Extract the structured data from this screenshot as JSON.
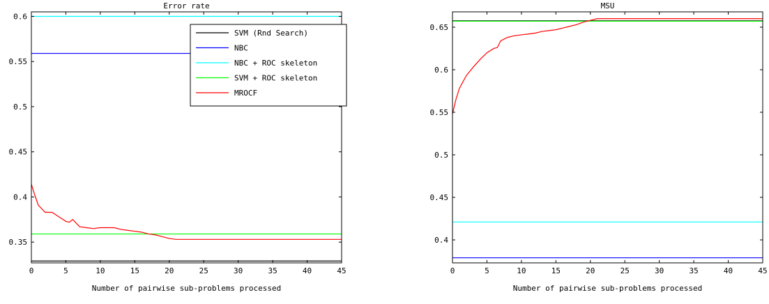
{
  "chart_data": [
    {
      "type": "line",
      "title": "Error rate",
      "xlabel": "Number of pairwise sub-problems processed",
      "ylabel": "",
      "xlim": [
        0,
        45
      ],
      "ylim": [
        0.327,
        0.605
      ],
      "xticks": [
        0,
        5,
        10,
        15,
        20,
        25,
        30,
        35,
        40,
        45
      ],
      "yticks": [
        0.35,
        0.4,
        0.45,
        0.5,
        0.55,
        0.6
      ],
      "ytick_labels": [
        "0.35",
        "0.4",
        "0.45",
        "0.5",
        "0.55",
        "0.6"
      ],
      "grid": false,
      "legend_position": "top-right",
      "series": [
        {
          "name": "SVM (Rnd Search)",
          "color": "#000000",
          "x": [
            0,
            45
          ],
          "y": [
            0.329,
            0.329
          ]
        },
        {
          "name": "NBC",
          "color": "#0000ff",
          "x": [
            0,
            45
          ],
          "y": [
            0.559,
            0.559
          ]
        },
        {
          "name": "NBC + ROC skeleton",
          "color": "#00ffff",
          "x": [
            0,
            45
          ],
          "y": [
            0.6,
            0.6
          ]
        },
        {
          "name": "SVM + ROC skeleton",
          "color": "#00ff00",
          "x": [
            0,
            45
          ],
          "y": [
            0.359,
            0.359
          ]
        },
        {
          "name": "MROCF",
          "color": "#ff0000",
          "x": [
            0,
            0.5,
            1,
            2,
            3,
            4,
            5,
            5.5,
            6,
            7,
            8,
            9,
            10,
            11,
            12,
            13,
            14,
            15,
            16,
            17,
            18,
            19,
            20,
            21,
            25,
            30,
            35,
            40,
            45
          ],
          "y": [
            0.414,
            0.402,
            0.391,
            0.383,
            0.383,
            0.378,
            0.373,
            0.372,
            0.375,
            0.367,
            0.366,
            0.365,
            0.366,
            0.366,
            0.366,
            0.364,
            0.363,
            0.362,
            0.361,
            0.359,
            0.358,
            0.356,
            0.354,
            0.353,
            0.353,
            0.353,
            0.353,
            0.353,
            0.353
          ]
        }
      ]
    },
    {
      "type": "line",
      "title": "MSU",
      "xlabel": "Number of pairwise sub-problems processed",
      "ylabel": "",
      "xlim": [
        0,
        45
      ],
      "ylim": [
        0.373,
        0.668
      ],
      "xticks": [
        0,
        5,
        10,
        15,
        20,
        25,
        30,
        35,
        40,
        45
      ],
      "yticks": [
        0.4,
        0.45,
        0.5,
        0.55,
        0.6,
        0.65
      ],
      "ytick_labels": [
        "0.4",
        "0.45",
        "0.5",
        "0.55",
        "0.6",
        "0.65"
      ],
      "grid": false,
      "series": [
        {
          "name": "SVM (Rnd Search)",
          "color": "#000000",
          "x": [
            0,
            45
          ],
          "y": [
            0.6575,
            0.6575
          ]
        },
        {
          "name": "NBC",
          "color": "#0000ff",
          "x": [
            0,
            45
          ],
          "y": [
            0.379,
            0.379
          ]
        },
        {
          "name": "NBC + ROC skeleton",
          "color": "#00ffff",
          "x": [
            0,
            45
          ],
          "y": [
            0.421,
            0.421
          ]
        },
        {
          "name": "SVM + ROC skeleton",
          "color": "#00ff00",
          "x": [
            0,
            45
          ],
          "y": [
            0.657,
            0.657
          ]
        },
        {
          "name": "MROCF",
          "color": "#ff0000",
          "x": [
            0,
            0.5,
            1,
            2,
            3,
            4,
            5,
            6,
            6.5,
            7,
            8,
            9,
            10,
            11,
            12,
            13,
            14,
            15,
            16,
            17,
            18,
            19,
            20,
            21,
            25,
            30,
            35,
            40,
            45
          ],
          "y": [
            0.548,
            0.565,
            0.578,
            0.593,
            0.603,
            0.612,
            0.62,
            0.625,
            0.626,
            0.634,
            0.638,
            0.64,
            0.641,
            0.642,
            0.643,
            0.645,
            0.646,
            0.647,
            0.649,
            0.651,
            0.653,
            0.656,
            0.658,
            0.66,
            0.66,
            0.66,
            0.66,
            0.66,
            0.66
          ]
        }
      ]
    }
  ]
}
